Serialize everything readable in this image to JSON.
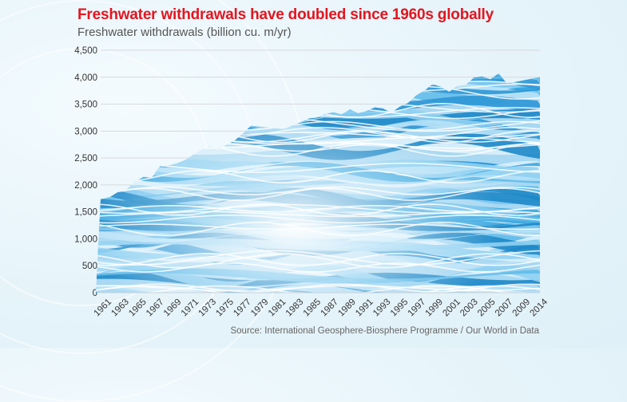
{
  "chart_data": {
    "type": "area",
    "title": "Freshwater withdrawals have doubled since 1960s globally",
    "subtitle": "Freshwater withdrawals (billion cu. m/yr)",
    "xlabel": "",
    "ylabel": "Freshwater withdrawals (billion cu. m/yr)",
    "ylim": [
      0,
      4500
    ],
    "yticks": [
      "0",
      "500",
      "1,000",
      "1,500",
      "2,000",
      "2,500",
      "3,000",
      "3,500",
      "4,000",
      "4,500"
    ],
    "ytick_values": [
      0,
      500,
      1000,
      1500,
      2000,
      2500,
      3000,
      3500,
      4000,
      4500
    ],
    "xtick_labels": [
      "1961",
      "1963",
      "1965",
      "1967",
      "1969",
      "1971",
      "1973",
      "1975",
      "1977",
      "1979",
      "1981",
      "1983",
      "1985",
      "1987",
      "1989",
      "1991",
      "1993",
      "1995",
      "1997",
      "1999",
      "2001",
      "2003",
      "2005",
      "2007",
      "2009",
      "2014"
    ],
    "grid": true,
    "legend": "none",
    "x": [
      "1961",
      "1962",
      "1963",
      "1964",
      "1965",
      "1966",
      "1967",
      "1968",
      "1969",
      "1970",
      "1971",
      "1972",
      "1973",
      "1974",
      "1975",
      "1976",
      "1977",
      "1978",
      "1979",
      "1980",
      "1981",
      "1982",
      "1983",
      "1984",
      "1985",
      "1986",
      "1987",
      "1988",
      "1989",
      "1990",
      "1991",
      "1992",
      "1993",
      "1994",
      "1995",
      "1996",
      "1997",
      "1998",
      "1999",
      "2000",
      "2001",
      "2002",
      "2003",
      "2004",
      "2005",
      "2006",
      "2007",
      "2008",
      "2009",
      "2010",
      "2014"
    ],
    "series": [
      {
        "name": "Freshwater withdrawals",
        "values": [
          1740,
          1780,
          1880,
          1930,
          2060,
          2150,
          2130,
          2350,
          2360,
          2400,
          2460,
          2560,
          2650,
          2720,
          2650,
          2740,
          2820,
          2950,
          3100,
          3080,
          3070,
          3050,
          3040,
          3100,
          3160,
          3230,
          3250,
          3320,
          3350,
          3310,
          3400,
          3330,
          3370,
          3440,
          3420,
          3340,
          3450,
          3520,
          3660,
          3750,
          3870,
          3820,
          3730,
          3830,
          3850,
          3990,
          4010,
          3960,
          4070,
          3880,
          4000
        ]
      }
    ],
    "source": "Source: International Geosphere-Biosphere Programme / Our World in Data"
  }
}
